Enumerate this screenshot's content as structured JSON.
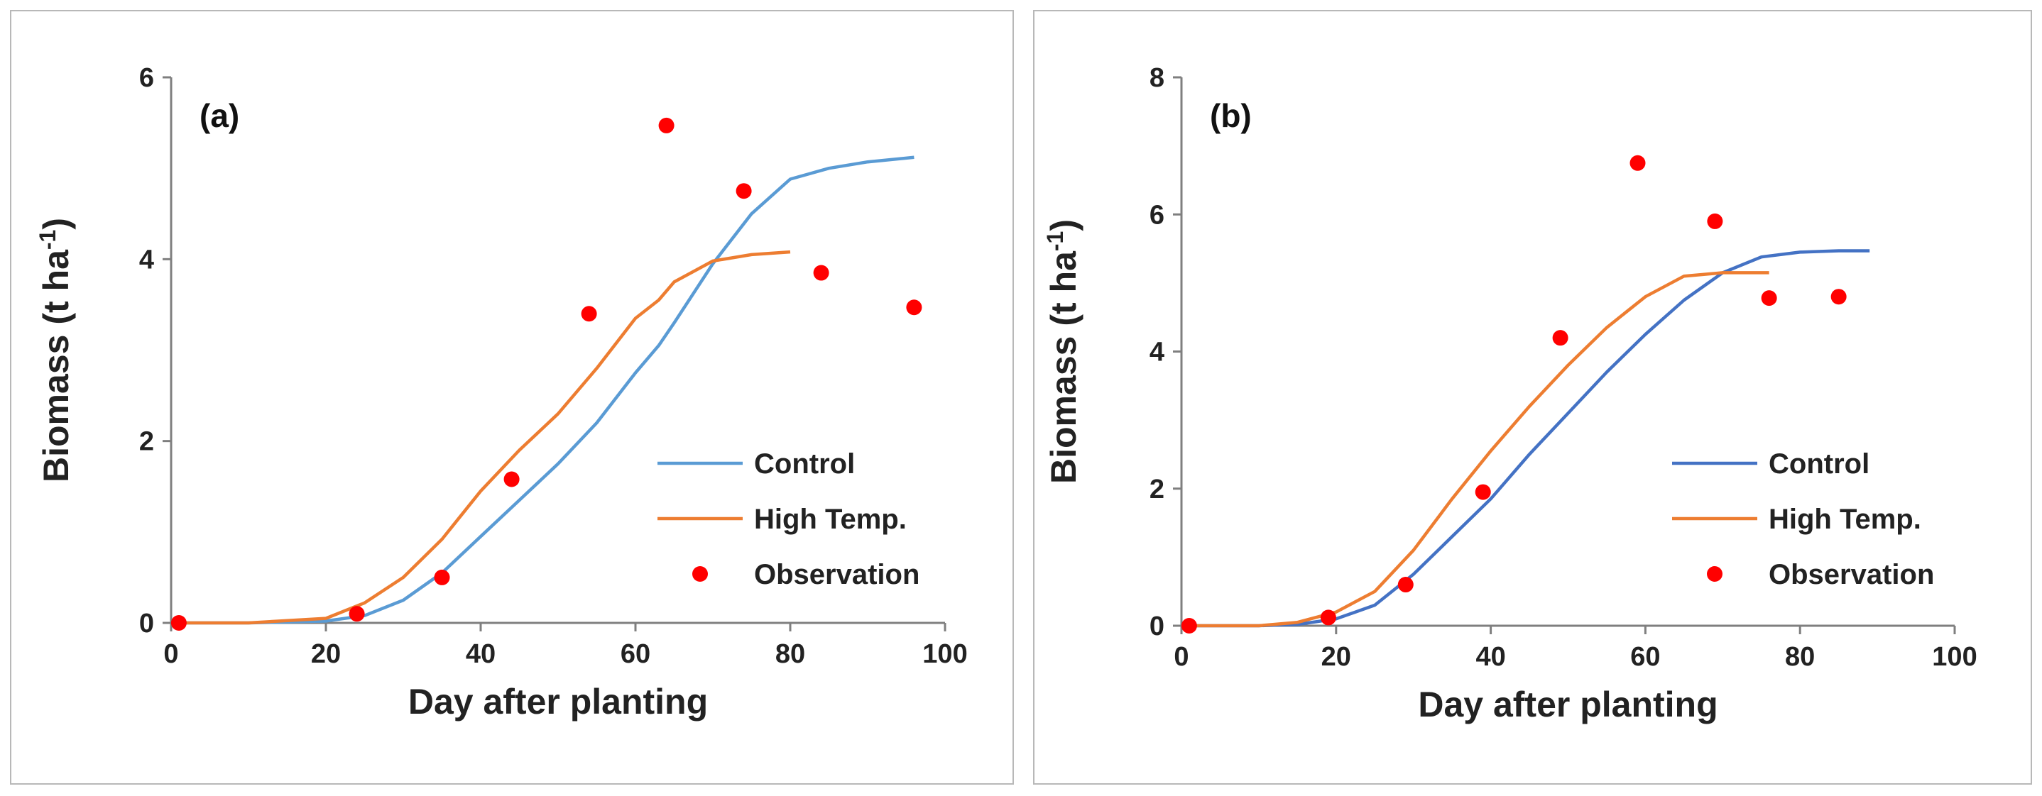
{
  "chart_data": [
    {
      "type": "line",
      "panel_label": "(a)",
      "xlabel": "Day after planting",
      "ylabel": "Biomass (t ha",
      "ylabel_sup": "-1",
      "ylabel_end": ")",
      "xlim": [
        0,
        100
      ],
      "ylim": [
        0,
        6
      ],
      "xticks": [
        0,
        20,
        40,
        60,
        80,
        100
      ],
      "yticks": [
        0,
        2,
        4,
        6
      ],
      "grid": false,
      "legend_position": "bottom-right",
      "series": [
        {
          "name": "Control",
          "kind": "line",
          "color": "#5a9bd4",
          "x": [
            1,
            10,
            20,
            25,
            30,
            35,
            40,
            45,
            50,
            55,
            60,
            63,
            65,
            70,
            75,
            80,
            85,
            90,
            96
          ],
          "y": [
            0,
            0,
            0.02,
            0.08,
            0.25,
            0.55,
            0.95,
            1.35,
            1.75,
            2.2,
            2.75,
            3.05,
            3.3,
            3.95,
            4.5,
            4.88,
            5.0,
            5.07,
            5.12
          ]
        },
        {
          "name": "High Temp.",
          "kind": "line",
          "color": "#ed7d31",
          "x": [
            1,
            10,
            20,
            25,
            30,
            35,
            40,
            45,
            50,
            55,
            60,
            63,
            65,
            70,
            75,
            80
          ],
          "y": [
            0,
            0,
            0.05,
            0.22,
            0.5,
            0.92,
            1.45,
            1.9,
            2.3,
            2.8,
            3.35,
            3.55,
            3.75,
            3.98,
            4.05,
            4.08
          ]
        },
        {
          "name": "Observation",
          "kind": "scatter",
          "color": "#ff0000",
          "x": [
            1,
            24,
            35,
            44,
            54,
            64,
            74,
            84,
            96
          ],
          "y": [
            0,
            0.1,
            0.5,
            1.58,
            3.4,
            5.47,
            4.75,
            3.85,
            3.47
          ]
        }
      ]
    },
    {
      "type": "line",
      "panel_label": "(b)",
      "xlabel": "Day after planting",
      "ylabel": "Biomass (t ha",
      "ylabel_sup": "-1",
      "ylabel_end": ")",
      "xlim": [
        0,
        100
      ],
      "ylim": [
        0,
        8
      ],
      "xticks": [
        0,
        20,
        40,
        60,
        80,
        100
      ],
      "yticks": [
        0,
        2,
        4,
        6,
        8
      ],
      "grid": false,
      "legend_position": "bottom-right",
      "series": [
        {
          "name": "Control",
          "kind": "line",
          "color": "#4472c4",
          "x": [
            1,
            10,
            15,
            20,
            25,
            30,
            35,
            40,
            45,
            50,
            55,
            60,
            65,
            70,
            75,
            80,
            85,
            89
          ],
          "y": [
            0,
            0,
            0.02,
            0.1,
            0.3,
            0.75,
            1.3,
            1.85,
            2.5,
            3.1,
            3.7,
            4.25,
            4.75,
            5.15,
            5.38,
            5.45,
            5.47,
            5.47
          ]
        },
        {
          "name": "High Temp.",
          "kind": "line",
          "color": "#ed7d31",
          "x": [
            1,
            10,
            15,
            20,
            25,
            30,
            35,
            40,
            45,
            50,
            55,
            60,
            65,
            70,
            76
          ],
          "y": [
            0,
            0,
            0.05,
            0.2,
            0.5,
            1.1,
            1.85,
            2.55,
            3.2,
            3.8,
            4.35,
            4.8,
            5.1,
            5.15,
            5.15
          ]
        },
        {
          "name": "Observation",
          "kind": "scatter",
          "color": "#ff0000",
          "x": [
            1,
            19,
            29,
            39,
            49,
            59,
            69,
            76,
            85
          ],
          "y": [
            0,
            0.12,
            0.6,
            1.95,
            4.2,
            6.75,
            5.9,
            4.78,
            4.8
          ]
        }
      ]
    }
  ]
}
